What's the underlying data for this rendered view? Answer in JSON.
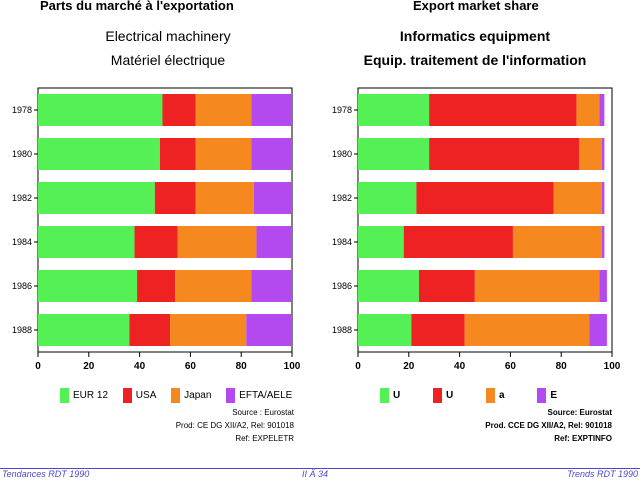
{
  "left_header": "Parts du marché à l'exportation",
  "right_header": "Export market share",
  "colors": {
    "EUR 12": "#55f055",
    "USA": "#ee2222",
    "Japan": "#f5881f",
    "EFTA": "#b24af0"
  },
  "footer": {
    "left": "Tendances RDT 1990",
    "center": "II Ä 34",
    "right": "Trends RDT 1990"
  },
  "chart_data": [
    {
      "type": "bar",
      "orientation": "horizontal",
      "stacked": true,
      "title": "Electrical machinery",
      "subtitle": "Matériel électrique",
      "categories": [
        "1978",
        "1980",
        "1982",
        "1984",
        "1986",
        "1988"
      ],
      "xlim": [
        0,
        100
      ],
      "xticks": [
        "0",
        "20",
        "40",
        "60",
        "80",
        "100"
      ],
      "series": [
        {
          "name": "EUR 12",
          "values": [
            49,
            48,
            46,
            38,
            39,
            36
          ]
        },
        {
          "name": "USA",
          "values": [
            13,
            14,
            16,
            17,
            15,
            16
          ]
        },
        {
          "name": "Japan",
          "values": [
            22,
            22,
            23,
            31,
            30,
            30
          ]
        },
        {
          "name": "EFTA/AELE",
          "values": [
            16,
            16,
            15,
            14,
            16,
            18
          ]
        }
      ],
      "notes": [
        "Source : Eurostat",
        "Prod: CE DG XII/A2, Rel: 901018",
        "Ref: EXPELETR"
      ]
    },
    {
      "type": "bar",
      "orientation": "horizontal",
      "stacked": true,
      "title": "Informatics equipment",
      "subtitle": "Equip. traitement de l'information",
      "categories": [
        "1978",
        "1980",
        "1982",
        "1984",
        "1986",
        "1988"
      ],
      "xlim": [
        0,
        100
      ],
      "xticks": [
        "0",
        "20",
        "40",
        "60",
        "80",
        "100"
      ],
      "series": [
        {
          "name": "U",
          "values": [
            28,
            28,
            23,
            18,
            24,
            21
          ]
        },
        {
          "name": "U",
          "values": [
            58,
            59,
            54,
            43,
            22,
            21
          ]
        },
        {
          "name": "a",
          "values": [
            9,
            9,
            19,
            35,
            49,
            49
          ]
        },
        {
          "name": "E",
          "values": [
            2,
            1,
            1,
            1,
            3,
            7
          ]
        }
      ],
      "notes": [
        "Source: Eurostat",
        "Prod. CCE DG XII/A2, Rel: 901018",
        "Ref: EXPTINFO"
      ]
    }
  ]
}
